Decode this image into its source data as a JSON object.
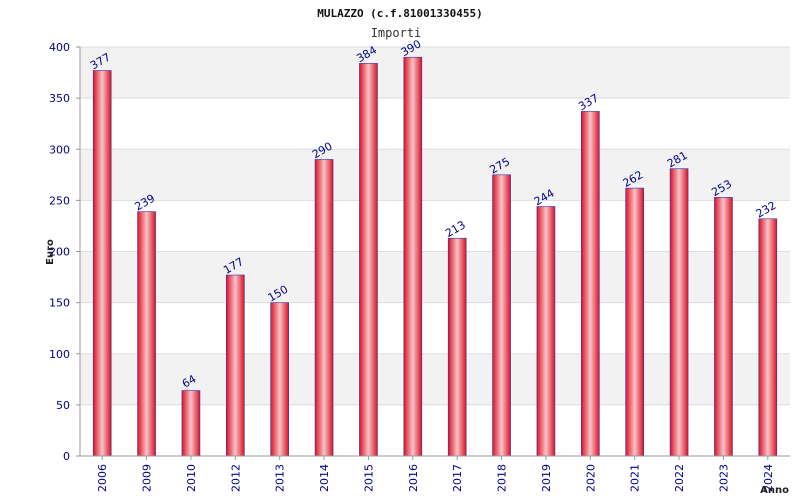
{
  "title": "MULAZZO (c.f.81001330455)",
  "subtitle": "Importi",
  "colors": {
    "bar_outer": "#dd1122",
    "bar_inner": "#f6c4c8",
    "bar_edge": "#3333aa",
    "band": "#f2f2f2",
    "grid": "#dddddd",
    "axis": "#999999",
    "text": "#00008b"
  },
  "chart_data": {
    "type": "bar",
    "title": "MULAZZO (c.f.81001330455)",
    "subtitle": "Importi",
    "xlabel": "Anno",
    "ylabel": "Euro",
    "categories": [
      "2006",
      "2009",
      "2010",
      "2012",
      "2013",
      "2014",
      "2015",
      "2016",
      "2017",
      "2018",
      "2019",
      "2020",
      "2021",
      "2022",
      "2023",
      "2024"
    ],
    "values": [
      377,
      239,
      64,
      177,
      150,
      290,
      384,
      390,
      213,
      275,
      244,
      337,
      262,
      281,
      253,
      232
    ],
    "ylim": [
      0,
      400
    ],
    "yticks": [
      0,
      50,
      100,
      150,
      200,
      250,
      300,
      350,
      400
    ],
    "grid": true,
    "legend": "none"
  }
}
